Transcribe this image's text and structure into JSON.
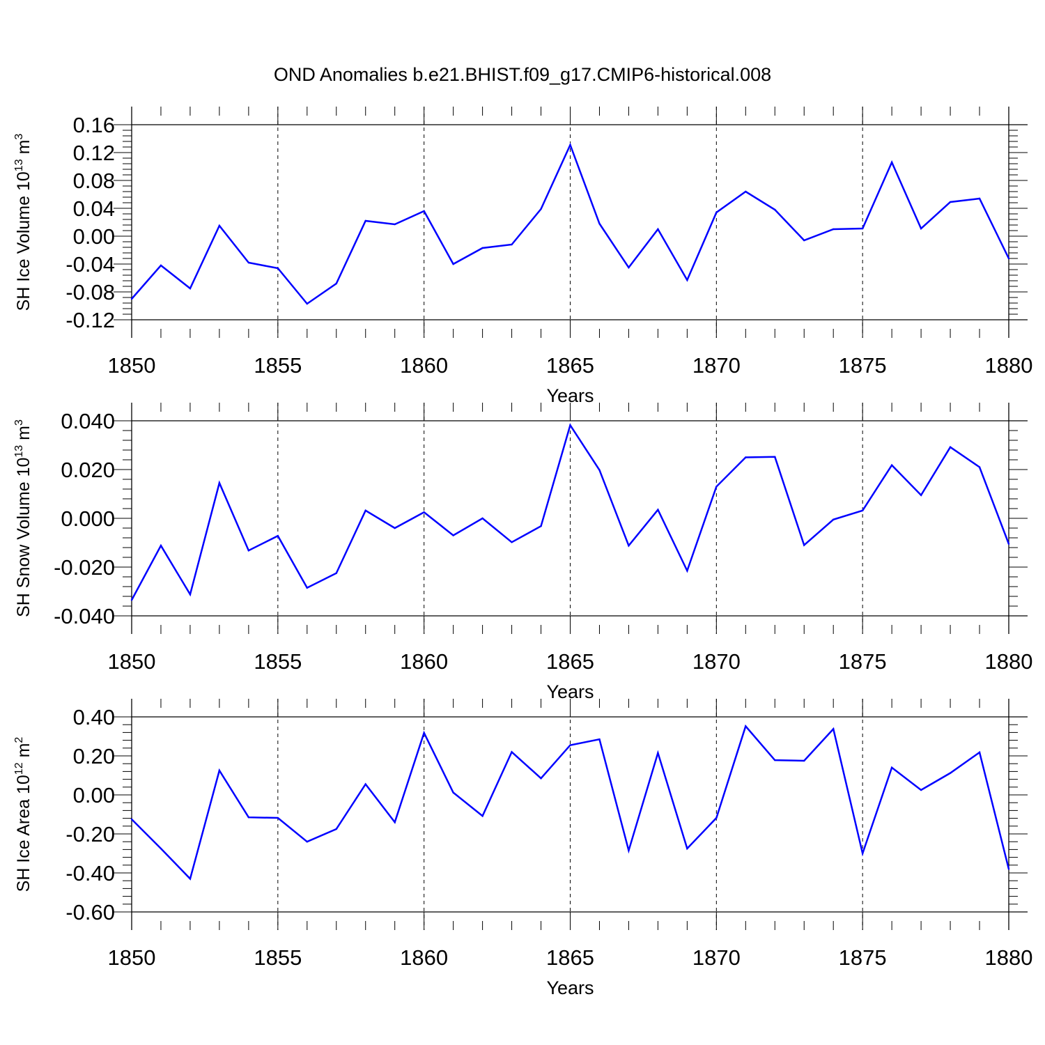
{
  "title": "OND Anomalies b.e21.BHIST.f09_g17.CMIP6-historical.008",
  "chart_data": [
    {
      "type": "line",
      "ylabel": "SH Ice Volume 10",
      "ylabel_exp": "13",
      "ylabel_unit": "m",
      "ylabel_unit_exp": "3",
      "xlabel": "Years",
      "xlim": [
        1850,
        1880
      ],
      "ylim": [
        -0.12,
        0.16
      ],
      "x_ticks": [
        1850,
        1855,
        1860,
        1865,
        1870,
        1875,
        1880
      ],
      "x_tick_labels": [
        "1850",
        "1855",
        "1860",
        "1865",
        "1870",
        "1875",
        "1880"
      ],
      "y_ticks": [
        -0.12,
        -0.08,
        -0.04,
        0.0,
        0.04,
        0.08,
        0.12,
        0.16
      ],
      "y_tick_labels": [
        "-0.12",
        "-0.08",
        "-0.04",
        "0.00",
        "0.04",
        "0.08",
        "0.12",
        "0.16"
      ],
      "y_minor_step": 0.008,
      "color": "#0000ff",
      "x": [
        1850,
        1851,
        1852,
        1853,
        1854,
        1855,
        1856,
        1857,
        1858,
        1859,
        1860,
        1861,
        1862,
        1863,
        1864,
        1865,
        1866,
        1867,
        1868,
        1869,
        1870,
        1871,
        1872,
        1873,
        1874,
        1875,
        1876,
        1877,
        1878,
        1879,
        1880
      ],
      "values": [
        -0.09,
        -0.042,
        -0.075,
        0.015,
        -0.038,
        -0.046,
        -0.097,
        -0.068,
        0.022,
        0.017,
        0.036,
        -0.04,
        -0.017,
        -0.012,
        0.039,
        0.131,
        0.018,
        -0.045,
        0.01,
        -0.063,
        0.034,
        0.064,
        0.038,
        -0.006,
        0.01,
        0.011,
        0.106,
        0.011,
        0.049,
        0.054,
        -0.032
      ]
    },
    {
      "type": "line",
      "ylabel": "SH Snow Volume 10",
      "ylabel_exp": "13",
      "ylabel_unit": "m",
      "ylabel_unit_exp": "3",
      "xlabel": "Years",
      "xlim": [
        1850,
        1880
      ],
      "ylim": [
        -0.04,
        0.04
      ],
      "x_ticks": [
        1850,
        1855,
        1860,
        1865,
        1870,
        1875,
        1880
      ],
      "x_tick_labels": [
        "1850",
        "1855",
        "1860",
        "1865",
        "1870",
        "1875",
        "1880"
      ],
      "y_ticks": [
        -0.04,
        -0.02,
        0.0,
        0.02,
        0.04
      ],
      "y_tick_labels": [
        "-0.040",
        "-0.020",
        "0.000",
        "0.020",
        "0.040"
      ],
      "y_minor_step": 0.004,
      "color": "#0000ff",
      "x": [
        1850,
        1851,
        1852,
        1853,
        1854,
        1855,
        1856,
        1857,
        1858,
        1859,
        1860,
        1861,
        1862,
        1863,
        1864,
        1865,
        1866,
        1867,
        1868,
        1869,
        1870,
        1871,
        1872,
        1873,
        1874,
        1875,
        1876,
        1877,
        1878,
        1879,
        1880
      ],
      "values": [
        -0.0335,
        -0.0112,
        -0.0312,
        0.0145,
        -0.0132,
        -0.0072,
        -0.0285,
        -0.0225,
        0.0032,
        -0.004,
        0.0025,
        -0.007,
        0.0,
        -0.0098,
        -0.0032,
        0.0382,
        0.0198,
        -0.0112,
        0.0035,
        -0.0215,
        0.013,
        0.025,
        0.0252,
        -0.011,
        -0.0005,
        0.0032,
        0.0218,
        0.0095,
        0.0292,
        0.021,
        -0.0105
      ]
    },
    {
      "type": "line",
      "ylabel": "SH Ice Area 10",
      "ylabel_exp": "12",
      "ylabel_unit": "m",
      "ylabel_unit_exp": "2",
      "xlabel": "Years",
      "xlim": [
        1850,
        1880
      ],
      "ylim": [
        -0.6,
        0.4
      ],
      "x_ticks": [
        1850,
        1855,
        1860,
        1865,
        1870,
        1875,
        1880
      ],
      "x_tick_labels": [
        "1850",
        "1855",
        "1860",
        "1865",
        "1870",
        "1875",
        "1880"
      ],
      "y_ticks": [
        -0.6,
        -0.4,
        -0.2,
        0.0,
        0.2,
        0.4
      ],
      "y_tick_labels": [
        "-0.60",
        "-0.40",
        "-0.20",
        "0.00",
        "0.20",
        "0.40"
      ],
      "y_minor_step": 0.04,
      "color": "#0000ff",
      "x": [
        1850,
        1851,
        1852,
        1853,
        1854,
        1855,
        1856,
        1857,
        1858,
        1859,
        1860,
        1861,
        1862,
        1863,
        1864,
        1865,
        1866,
        1867,
        1868,
        1869,
        1870,
        1871,
        1872,
        1873,
        1874,
        1875,
        1876,
        1877,
        1878,
        1879,
        1880
      ],
      "values": [
        -0.125,
        -0.275,
        -0.43,
        0.125,
        -0.115,
        -0.118,
        -0.24,
        -0.175,
        0.055,
        -0.14,
        0.318,
        0.012,
        -0.108,
        0.22,
        0.085,
        0.255,
        0.285,
        -0.285,
        0.215,
        -0.275,
        -0.118,
        0.352,
        0.178,
        0.175,
        0.338,
        -0.3,
        0.14,
        0.025,
        0.112,
        0.218,
        -0.38
      ]
    }
  ]
}
